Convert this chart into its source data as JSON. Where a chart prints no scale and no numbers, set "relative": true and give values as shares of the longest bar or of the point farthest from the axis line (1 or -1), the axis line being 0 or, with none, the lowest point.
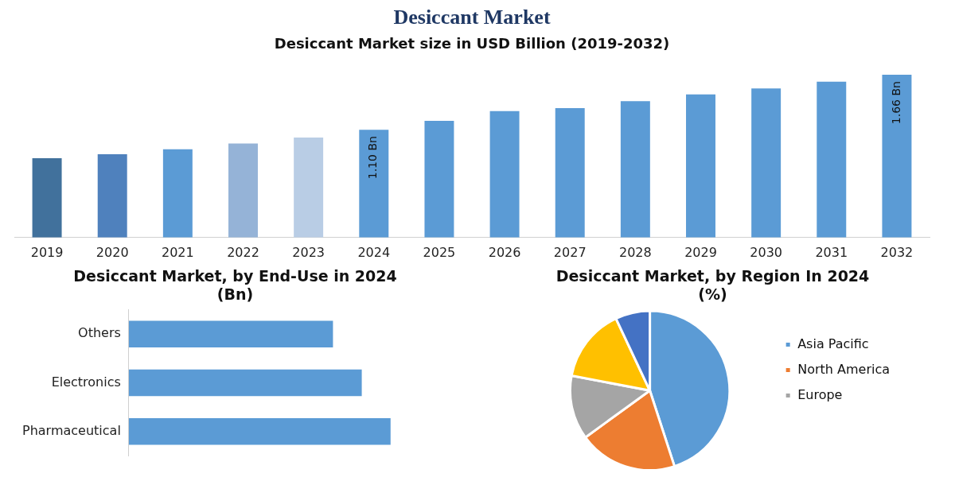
{
  "chart_data": [
    {
      "type": "bar",
      "title": "Desiccant Market",
      "subtitle": "Desiccant Market size in USD Billion (2019-2032)",
      "categories": [
        "2019",
        "2020",
        "2021",
        "2022",
        "2023",
        "2024",
        "2025",
        "2026",
        "2027",
        "2028",
        "2029",
        "2030",
        "2031",
        "2032"
      ],
      "values": [
        0.81,
        0.85,
        0.9,
        0.96,
        1.02,
        1.1,
        1.19,
        1.29,
        1.32,
        1.39,
        1.46,
        1.52,
        1.59,
        1.66
      ],
      "value_labels": [
        null,
        null,
        null,
        null,
        null,
        "1.10 Bn",
        null,
        null,
        null,
        null,
        null,
        null,
        null,
        "1.66 Bn"
      ],
      "colors": [
        "#41719c",
        "#4f81bd",
        "#5b9bd5",
        "#95b3d7",
        "#b9cde5",
        "#5b9bd5",
        "#5b9bd5",
        "#5b9bd5",
        "#5b9bd5",
        "#5b9bd5",
        "#5b9bd5",
        "#5b9bd5",
        "#5b9bd5",
        "#5b9bd5"
      ],
      "grid": false,
      "legend": false
    },
    {
      "type": "bar",
      "orientation": "horizontal",
      "title": "Desiccant Market, by End-Use in 2024\n(Bn)",
      "categories": [
        "Others",
        "Electronics",
        "Pharmaceutical"
      ],
      "relative": true,
      "values": [
        0.78,
        0.89,
        1
      ],
      "color": "#5b9bd5",
      "grid": false,
      "legend": false
    },
    {
      "type": "pie",
      "title": "Desiccant Market, by Region In 2024\n(%)",
      "categories": [
        "Asia Pacific",
        "North America",
        "Europe",
        null,
        null
      ],
      "values": [
        45,
        20,
        13,
        15,
        7
      ],
      "colors": [
        "#5b9bd5",
        "#ed7d31",
        "#a5a5a5",
        "#ffc000",
        "#4472c4"
      ],
      "legend": "right"
    }
  ]
}
